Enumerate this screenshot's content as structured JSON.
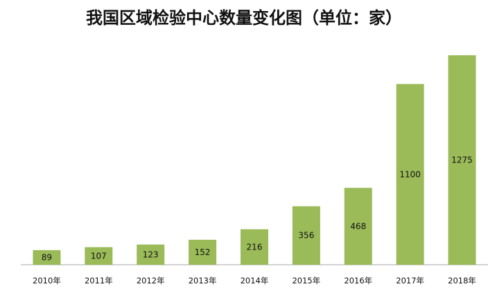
{
  "chart_data": {
    "type": "bar",
    "title": "我国区域检验中心数量变化图（单位：家）",
    "categories": [
      "2010年",
      "2011年",
      "2012年",
      "2013年",
      "2014年",
      "2015年",
      "2016年",
      "2017年",
      "2018年"
    ],
    "values": [
      89,
      107,
      123,
      152,
      216,
      356,
      468,
      1100,
      1275
    ],
    "data_labels": [
      "89",
      "107",
      "123",
      "152",
      "216",
      "356",
      "468",
      "1100",
      "1275"
    ],
    "xlabel": "",
    "ylabel": "",
    "ylim": [
      0,
      1300
    ],
    "grid": false,
    "legend": "none",
    "bar_color": "#9bbb59",
    "axis_color": "#a6a6a6"
  }
}
